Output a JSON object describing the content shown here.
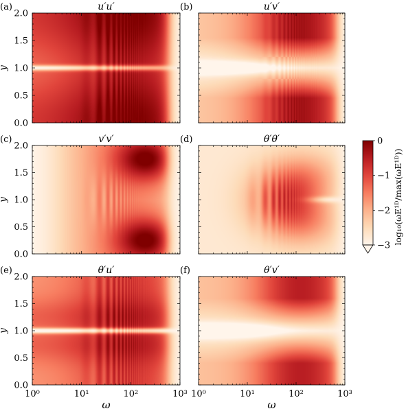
{
  "chart_data": [
    {
      "type": "heatmap",
      "panel_label": "(a)",
      "title": "u′u′",
      "pattern": "uu",
      "xlabel": "",
      "ylabel": "y",
      "xscale": "log",
      "xlim": [
        1,
        1000
      ],
      "ylim": [
        0.0,
        2.0
      ],
      "xticklabels": [],
      "yticklabels": [
        "0.0",
        "0.5",
        "1.0",
        "1.5",
        "2.0"
      ]
    },
    {
      "type": "heatmap",
      "panel_label": "(b)",
      "title": "u′v′",
      "pattern": "uv",
      "xlabel": "",
      "ylabel": "",
      "xscale": "log",
      "xlim": [
        1,
        1000
      ],
      "ylim": [
        0.0,
        2.0
      ],
      "xticklabels": [],
      "yticklabels": []
    },
    {
      "type": "heatmap",
      "panel_label": "(c)",
      "title": "v′v′",
      "pattern": "vv",
      "xlabel": "",
      "ylabel": "y",
      "xscale": "log",
      "xlim": [
        1,
        1000
      ],
      "ylim": [
        0.0,
        2.0
      ],
      "xticklabels": [],
      "yticklabels": [
        "0.0",
        "0.5",
        "1.0",
        "1.5",
        "2.0"
      ]
    },
    {
      "type": "heatmap",
      "panel_label": "(d)",
      "title": "θ′θ′",
      "pattern": "tt",
      "xlabel": "",
      "ylabel": "",
      "xscale": "log",
      "xlim": [
        1,
        1000
      ],
      "ylim": [
        0.0,
        2.0
      ],
      "xticklabels": [],
      "yticklabels": []
    },
    {
      "type": "heatmap",
      "panel_label": "(e)",
      "title": "θ′u′",
      "pattern": "tu",
      "xlabel": "ω",
      "ylabel": "y",
      "xscale": "log",
      "xlim": [
        1,
        1000
      ],
      "ylim": [
        0.0,
        2.0
      ],
      "xticklabels": [
        "10⁰",
        "10¹",
        "10²",
        "10³"
      ],
      "yticklabels": [
        "0.0",
        "0.5",
        "1.0",
        "1.5",
        "2.0"
      ]
    },
    {
      "type": "heatmap",
      "panel_label": "(f)",
      "title": "θ′v′",
      "pattern": "tv",
      "xlabel": "ω",
      "ylabel": "",
      "xscale": "log",
      "xlim": [
        1,
        1000
      ],
      "ylim": [
        0.0,
        2.0
      ],
      "xticklabels": [
        "10⁰",
        "10¹",
        "10²",
        "10³"
      ],
      "yticklabels": []
    }
  ],
  "colorbar": {
    "label": "log₁₀(ωE¹ᴰ/max(ωE¹ᴰ))",
    "ticks": [
      0,
      -1,
      -2,
      -3
    ],
    "ticklabels": [
      "0",
      "−1",
      "−2",
      "−3"
    ],
    "range": [
      -3,
      0
    ],
    "extend": "min"
  },
  "colormap": [
    "#fff5eb",
    "#fddbb8",
    "#fcb28c",
    "#f77d60",
    "#e1453c",
    "#b81d22",
    "#7f0000"
  ]
}
